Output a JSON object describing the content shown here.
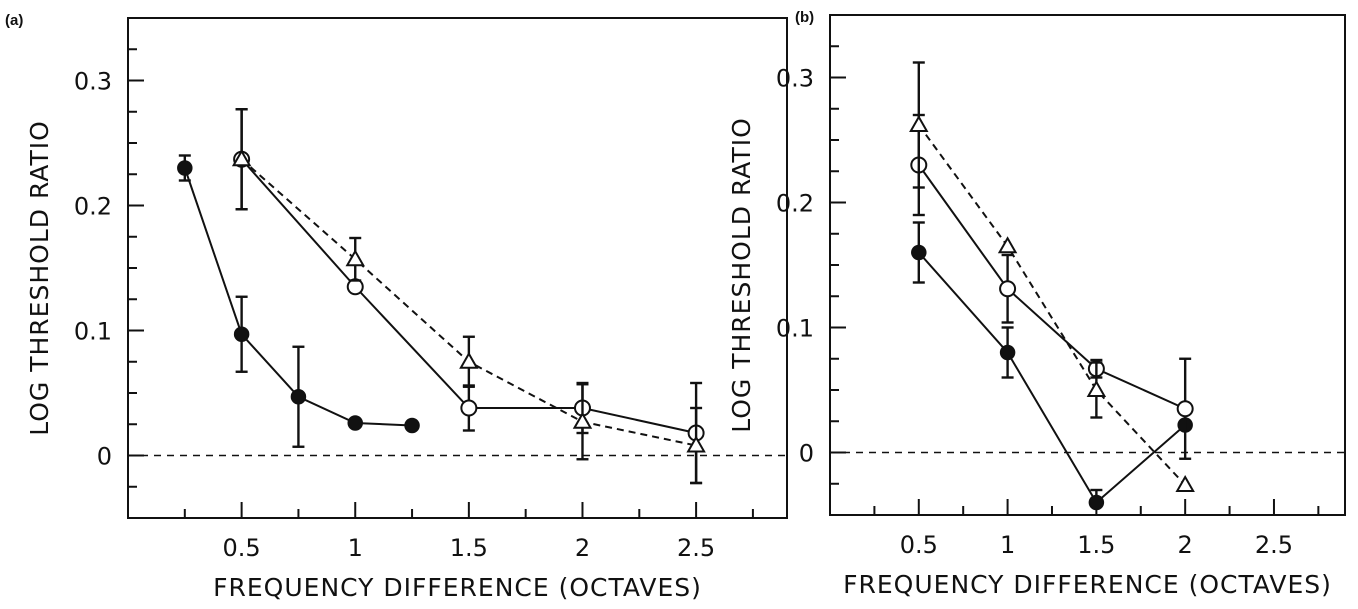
{
  "chart_data": [
    {
      "type": "line",
      "panel_label": "(a)",
      "xlabel": "FREQUENCY  DIFFERENCE  (OCTAVES)",
      "ylabel": "LOG  THRESHOLD  RATIO",
      "xlim": [
        0,
        2.9
      ],
      "ylim": [
        -0.05,
        0.35
      ],
      "xticks": [
        0.25,
        0.5,
        0.75,
        1,
        1.25,
        1.5,
        1.75,
        2,
        2.25,
        2.5,
        2.75
      ],
      "xtick_labels": [
        "",
        "0.5",
        "",
        "1",
        "",
        "1.5",
        "",
        "2",
        "",
        "2.5",
        ""
      ],
      "yticks": [
        -0.05,
        -0.025,
        0,
        0.025,
        0.05,
        0.075,
        0.1,
        0.125,
        0.15,
        0.175,
        0.2,
        0.225,
        0.25,
        0.275,
        0.3,
        0.325
      ],
      "ytick_labels": [
        "",
        "",
        "0",
        "",
        "",
        "",
        "0.1",
        "",
        "",
        "",
        "0.2",
        "",
        "",
        "",
        "0.3",
        ""
      ],
      "reference_line": 0,
      "series": [
        {
          "marker": "filled-circle",
          "line": "solid",
          "points": [
            {
              "x": 0.25,
              "y": 0.23,
              "err_lo": 0.01,
              "err_hi": 0.01
            },
            {
              "x": 0.5,
              "y": 0.097,
              "err_lo": 0.03,
              "err_hi": 0.03
            },
            {
              "x": 0.75,
              "y": 0.047,
              "err_lo": 0.04,
              "err_hi": 0.04
            },
            {
              "x": 1.0,
              "y": 0.026
            },
            {
              "x": 1.25,
              "y": 0.024
            }
          ]
        },
        {
          "marker": "open-circle",
          "line": "solid",
          "points": [
            {
              "x": 0.5,
              "y": 0.237,
              "err_lo": 0.04,
              "err_hi": 0.04
            },
            {
              "x": 1.0,
              "y": 0.135
            },
            {
              "x": 1.5,
              "y": 0.038,
              "err_lo": 0.018,
              "err_hi": 0.018
            },
            {
              "x": 2.0,
              "y": 0.038,
              "err_lo": 0.02,
              "err_hi": 0.02
            },
            {
              "x": 2.5,
              "y": 0.018,
              "err_lo": 0.04,
              "err_hi": 0.04
            }
          ]
        },
        {
          "marker": "open-triangle",
          "line": "dashed",
          "points": [
            {
              "x": 0.5,
              "y": 0.237,
              "err_lo": 0.04,
              "err_hi": 0.04
            },
            {
              "x": 1.0,
              "y": 0.157,
              "err_lo": 0.017,
              "err_hi": 0.017
            },
            {
              "x": 1.5,
              "y": 0.075,
              "err_lo": 0.02,
              "err_hi": 0.02
            },
            {
              "x": 2.0,
              "y": 0.027,
              "err_lo": 0.03,
              "err_hi": 0.03
            },
            {
              "x": 2.5,
              "y": 0.008,
              "err_lo": 0.03,
              "err_hi": 0.03
            }
          ]
        }
      ]
    },
    {
      "type": "line",
      "panel_label": "(b)",
      "xlabel": "FREQUENCY  DIFFERENCE  (OCTAVES)",
      "ylabel": "LOG  THRESHOLD  RATIO",
      "xlim": [
        0,
        2.9
      ],
      "ylim": [
        -0.05,
        0.35
      ],
      "xticks": [
        0.25,
        0.5,
        0.75,
        1,
        1.25,
        1.5,
        1.75,
        2,
        2.25,
        2.5,
        2.75
      ],
      "xtick_labels": [
        "",
        "0.5",
        "",
        "1",
        "",
        "1.5",
        "",
        "2",
        "",
        "2.5",
        ""
      ],
      "yticks": [
        -0.05,
        -0.025,
        0,
        0.025,
        0.05,
        0.075,
        0.1,
        0.125,
        0.15,
        0.175,
        0.2,
        0.225,
        0.25,
        0.275,
        0.3,
        0.325
      ],
      "ytick_labels": [
        "",
        "",
        "0",
        "",
        "",
        "",
        "0.1",
        "",
        "",
        "",
        "0.2",
        "",
        "",
        "",
        "0.3",
        ""
      ],
      "reference_line": 0,
      "series": [
        {
          "marker": "filled-circle",
          "line": "solid",
          "points": [
            {
              "x": 0.5,
              "y": 0.16,
              "err_lo": 0.024,
              "err_hi": 0.024
            },
            {
              "x": 1.0,
              "y": 0.08,
              "err_lo": 0.02,
              "err_hi": 0.02
            },
            {
              "x": 1.5,
              "y": -0.04,
              "err_lo": 0.0,
              "err_hi": 0.01
            },
            {
              "x": 2.0,
              "y": 0.022
            }
          ]
        },
        {
          "marker": "open-circle",
          "line": "solid",
          "points": [
            {
              "x": 0.5,
              "y": 0.23,
              "err_lo": 0.04,
              "err_hi": 0.04
            },
            {
              "x": 1.0,
              "y": 0.131,
              "err_lo": 0.027,
              "err_hi": 0.027
            },
            {
              "x": 1.5,
              "y": 0.067,
              "err_lo": 0.007,
              "err_hi": 0.007
            },
            {
              "x": 2.0,
              "y": 0.035,
              "err_lo": 0.04,
              "err_hi": 0.04
            }
          ]
        },
        {
          "marker": "open-triangle",
          "line": "dashed",
          "points": [
            {
              "x": 0.5,
              "y": 0.262,
              "err_lo": 0.05,
              "err_hi": 0.05
            },
            {
              "x": 1.0,
              "y": 0.165
            },
            {
              "x": 1.5,
              "y": 0.05,
              "err_lo": 0.022,
              "err_hi": 0.022
            },
            {
              "x": 2.0,
              "y": -0.026
            }
          ]
        }
      ]
    }
  ]
}
